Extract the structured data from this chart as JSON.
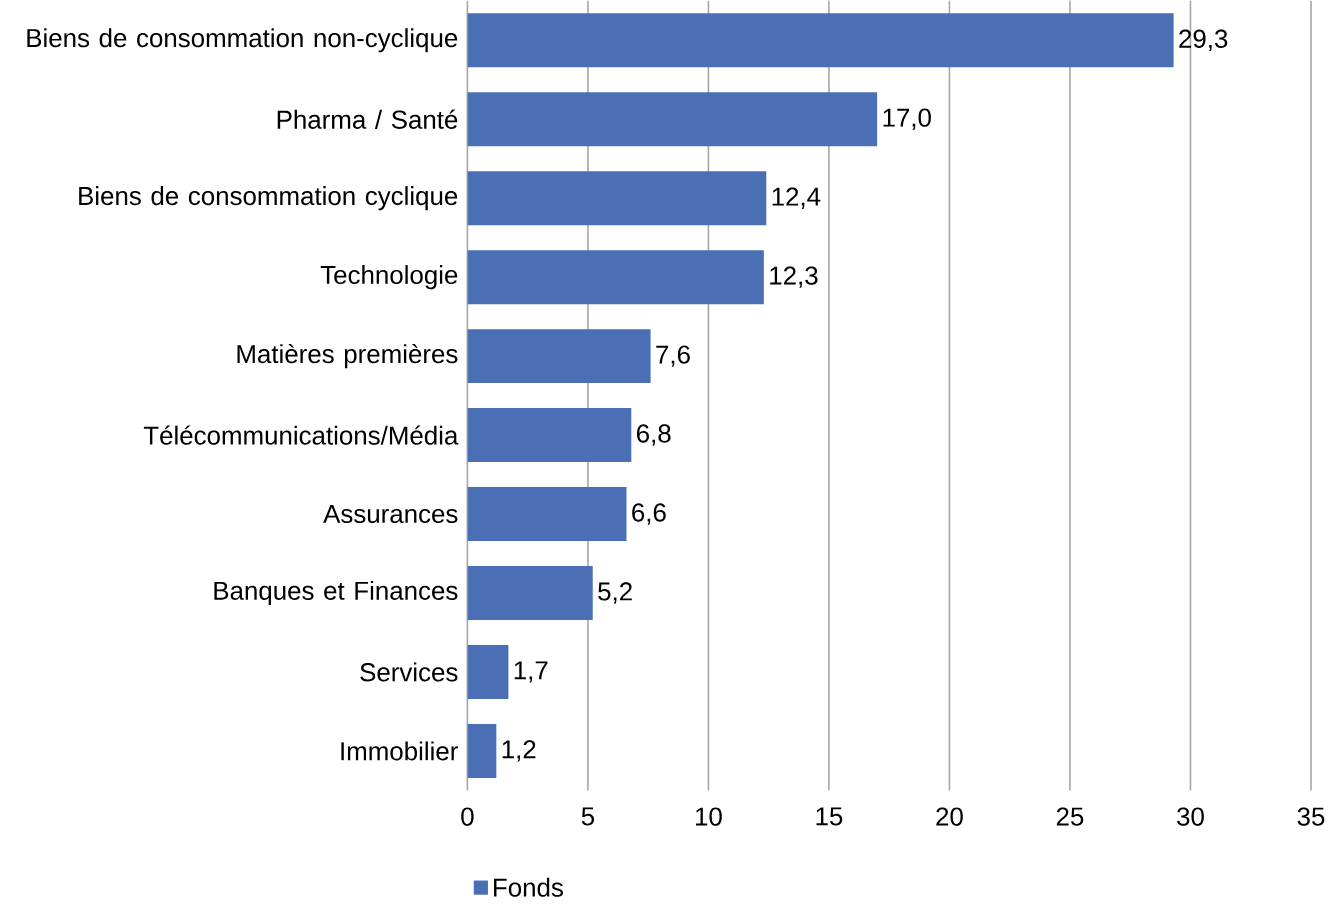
{
  "chart_data": {
    "type": "bar",
    "orientation": "horizontal",
    "categories": [
      "Biens de consommation non-cyclique",
      "Pharma / Santé",
      "Biens de consommation cyclique",
      "Technologie",
      "Matières premières",
      "Télécommunications/Média",
      "Assurances",
      "Banques et Finances",
      "Services",
      "Immobilier"
    ],
    "series": [
      {
        "name": "Fonds",
        "color": "#4a6fb5",
        "values": [
          29.3,
          17.0,
          12.4,
          12.3,
          7.6,
          6.8,
          6.6,
          5.2,
          1.7,
          1.2
        ],
        "value_labels": [
          "29,3",
          "17,0",
          "12,4",
          "12,3",
          "7,6",
          "6,8",
          "6,6",
          "5,2",
          "1,7",
          "1,2"
        ]
      }
    ],
    "xlim": [
      0,
      35
    ],
    "xticks": [
      0,
      5,
      10,
      15,
      20,
      25,
      30,
      35
    ],
    "grid": "x",
    "legend": "bottom"
  }
}
